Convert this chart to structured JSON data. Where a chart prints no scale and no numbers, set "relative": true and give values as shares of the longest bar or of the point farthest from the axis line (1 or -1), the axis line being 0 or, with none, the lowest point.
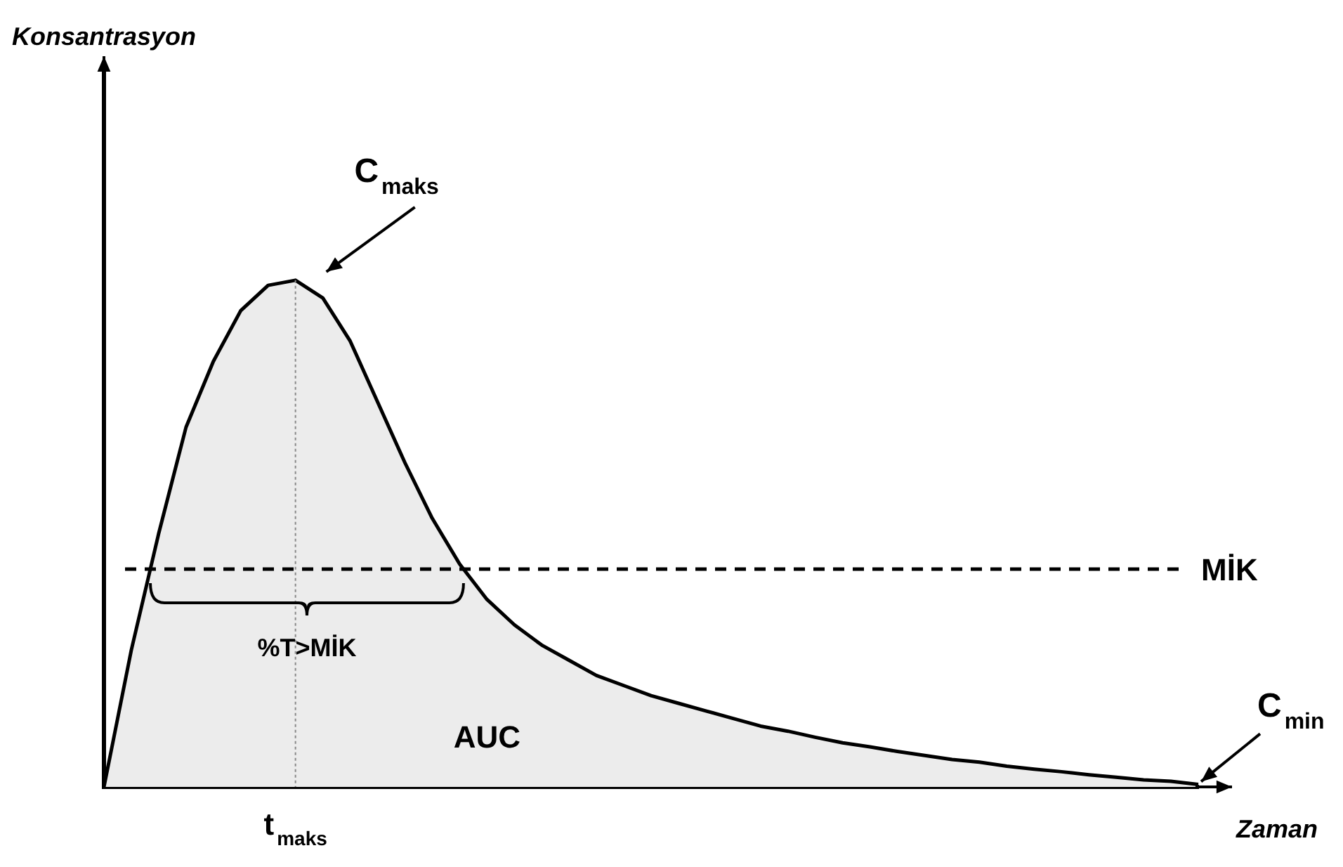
{
  "chart_data": {
    "type": "area",
    "relative": true,
    "color": "#000000",
    "xlabel": "Zaman",
    "categories": [
      null,
      null,
      null,
      null,
      null,
      null,
      null,
      null,
      null,
      null,
      null,
      null,
      null,
      null,
      null,
      null,
      null,
      null,
      null,
      null,
      null,
      null,
      null,
      null,
      null,
      null,
      null,
      null,
      null,
      null,
      null,
      null,
      null,
      null,
      null,
      null,
      null,
      null,
      null,
      null,
      null
    ],
    "values": [
      0,
      0.27,
      0.5,
      0.71,
      0.84,
      0.94,
      0.99,
      1,
      0.965,
      0.88,
      0.76,
      0.64,
      0.53,
      0.44,
      0.37,
      0.32,
      0.28,
      0.25,
      0.22,
      0.2,
      0.18,
      0.165,
      0.15,
      0.135,
      0.12,
      0.11,
      0.098,
      0.087,
      0.079,
      0.07,
      0.062,
      0.054,
      0.049,
      0.041,
      0.035,
      0.03,
      0.024,
      0.019,
      0.014,
      0.011,
      0.005
    ],
    "ref_lines": [
      {
        "axis": "y",
        "value": 0.43,
        "label": "MİK",
        "line_style": "dashed"
      }
    ],
    "annotations": [
      "C$_{maks}$",
      "t$_{maks}$",
      "%T>MİK",
      "AUC",
      "C$_{min}$",
      "Konsantrasyon"
    ]
  }
}
